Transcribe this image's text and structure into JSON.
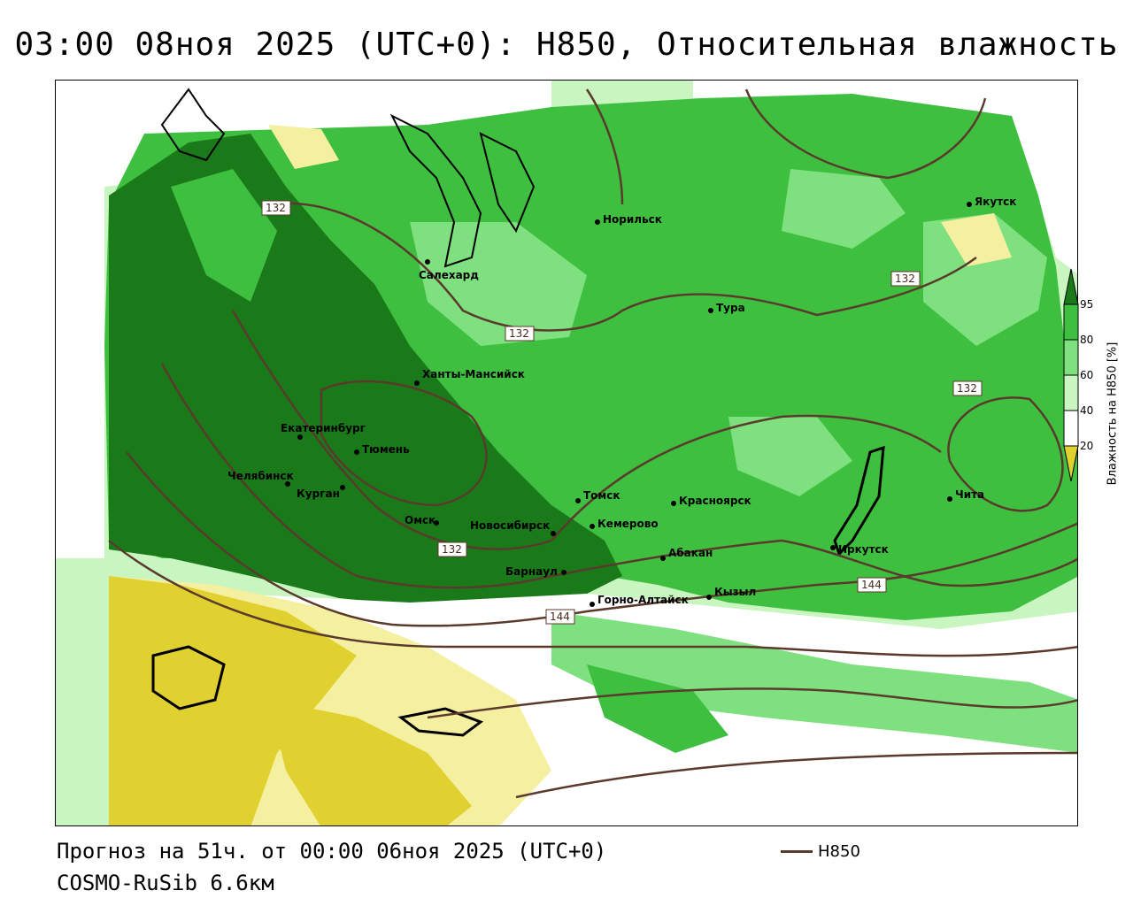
{
  "title": "03:00 08ноя 2025 (UTC+0): H850, Относительная влажность",
  "footer": {
    "forecast": "Прогноз на 51ч. от 00:00 06ноя 2025 (UTC+0)",
    "model": "COSMO-RuSib 6.6км",
    "contour_legend": "H850"
  },
  "legend": {
    "unit_label": "Влажность на H850 [%]",
    "ticks": [
      "95",
      "80",
      "60",
      "40",
      "20"
    ],
    "colors": {
      "95_plus": "#1a7a1a",
      "80_95": "#3fbf3f",
      "60_80": "#7fe07f",
      "40_60": "#c8f5c0",
      "20_40": "#ffffff",
      "below_20": "#f5f0a0",
      "dry": "#e0d030"
    }
  },
  "contour_color": "#5a3a2c",
  "contour_labels": [
    "132",
    "132",
    "132",
    "132",
    "132",
    "144",
    "144"
  ],
  "cities": [
    "Якутск",
    "Норильск",
    "Салехард",
    "Тура",
    "Ханты-Мансийск",
    "Екатеринбург",
    "Тюмень",
    "Челябинск",
    "Курган",
    "Омск",
    "Новосибирск",
    "Томск",
    "Кемерово",
    "Красноярск",
    "Абакан",
    "Барнаул",
    "Горно-Алтайск",
    "Кызыл",
    "Иркутск",
    "Чита"
  ]
}
